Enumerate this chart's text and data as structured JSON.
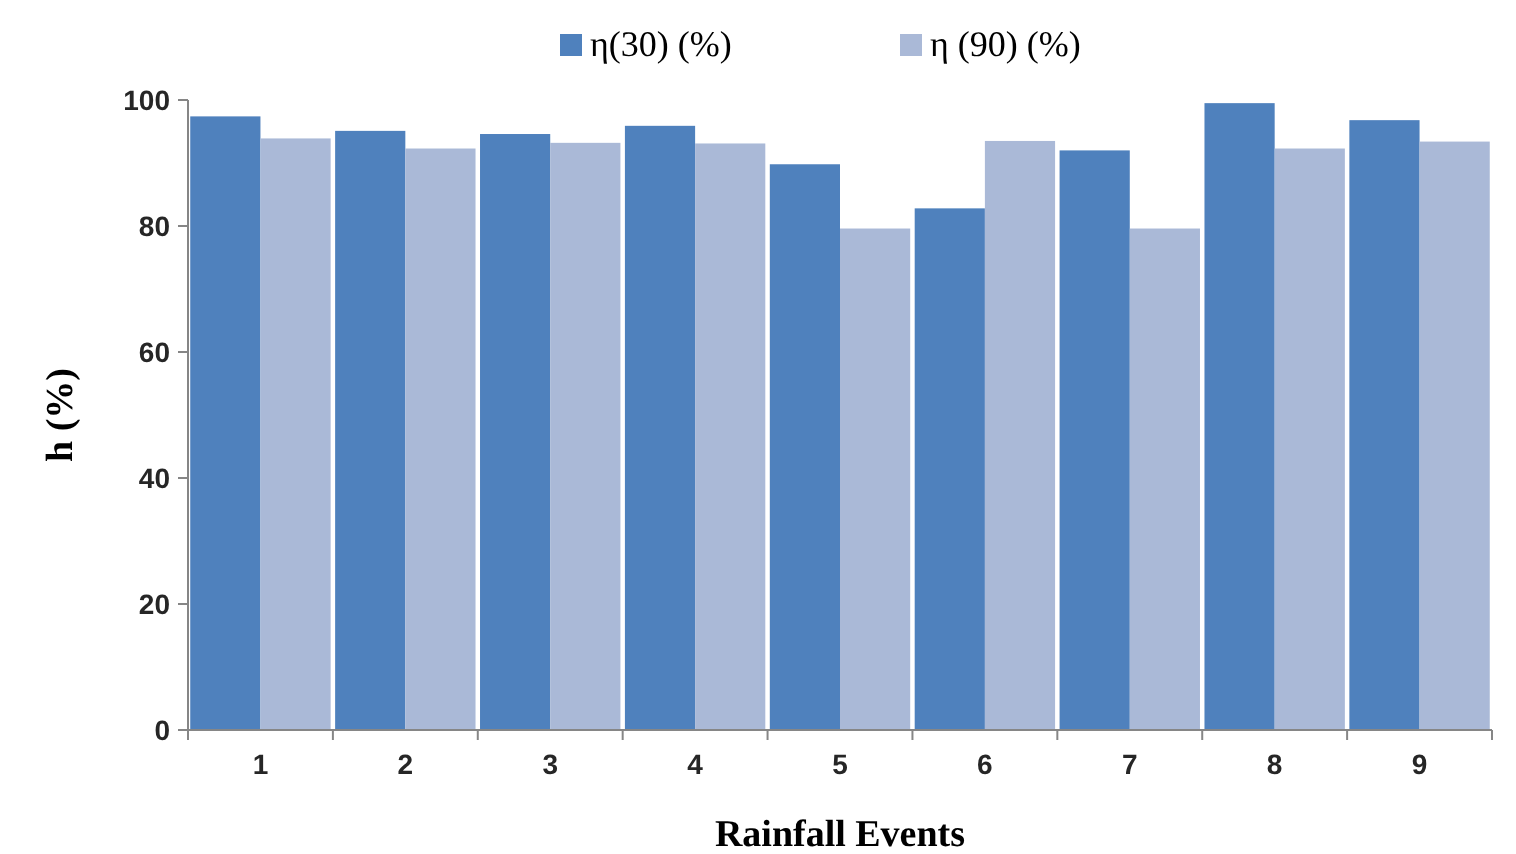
{
  "chart_data": {
    "type": "bar",
    "xlabel": "Rainfall Events",
    "ylabel": "h (%)",
    "categories": [
      "1",
      "2",
      "3",
      "4",
      "5",
      "6",
      "7",
      "8",
      "9"
    ],
    "series": [
      {
        "name": "η(30) (%)",
        "color": "#4f81bd",
        "values": [
          97.4,
          95.1,
          94.6,
          95.9,
          89.8,
          82.8,
          92.0,
          99.5,
          96.8
        ]
      },
      {
        "name": "η (90) (%)",
        "color": "#aab9d7",
        "values": [
          93.9,
          92.3,
          93.2,
          93.1,
          79.6,
          93.5,
          79.6,
          92.3,
          93.4
        ]
      }
    ],
    "ylim": [
      0,
      100
    ],
    "yticks": [
      0,
      20,
      40,
      60,
      80,
      100
    ],
    "legend": "top",
    "grid": false
  }
}
